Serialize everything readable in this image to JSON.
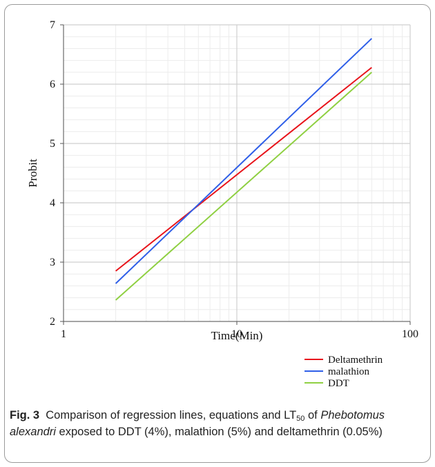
{
  "chart_data": {
    "type": "line",
    "title": "",
    "xlabel": "Time(Min)",
    "ylabel": "Probit",
    "x_scale": "log",
    "xlim": [
      1,
      100
    ],
    "ylim": [
      2,
      7
    ],
    "x_ticks": [
      "1",
      "10",
      "100"
    ],
    "y_ticks": [
      "2",
      "3",
      "4",
      "5",
      "6",
      "7"
    ],
    "grid": true,
    "legend_position": "bottom-right",
    "series": [
      {
        "name": "Deltamethrin",
        "color": "#e8141b",
        "x": [
          2,
          60
        ],
        "y": [
          2.85,
          6.28
        ]
      },
      {
        "name": "malathion",
        "color": "#2f5fe8",
        "x": [
          2,
          60
        ],
        "y": [
          2.64,
          6.77
        ]
      },
      {
        "name": "DDT",
        "color": "#8fd042",
        "x": [
          2,
          60
        ],
        "y": [
          2.36,
          6.2
        ]
      }
    ]
  },
  "caption": {
    "label": "Fig. 3",
    "text_before": "Comparison of regression lines, equations and LT",
    "subscript": "50",
    "text_mid": " of ",
    "species": "Phebotomus alexandri",
    "text_after": " exposed to DDT (4%), malathion (5%) and deltamethrin (0.05%)"
  }
}
